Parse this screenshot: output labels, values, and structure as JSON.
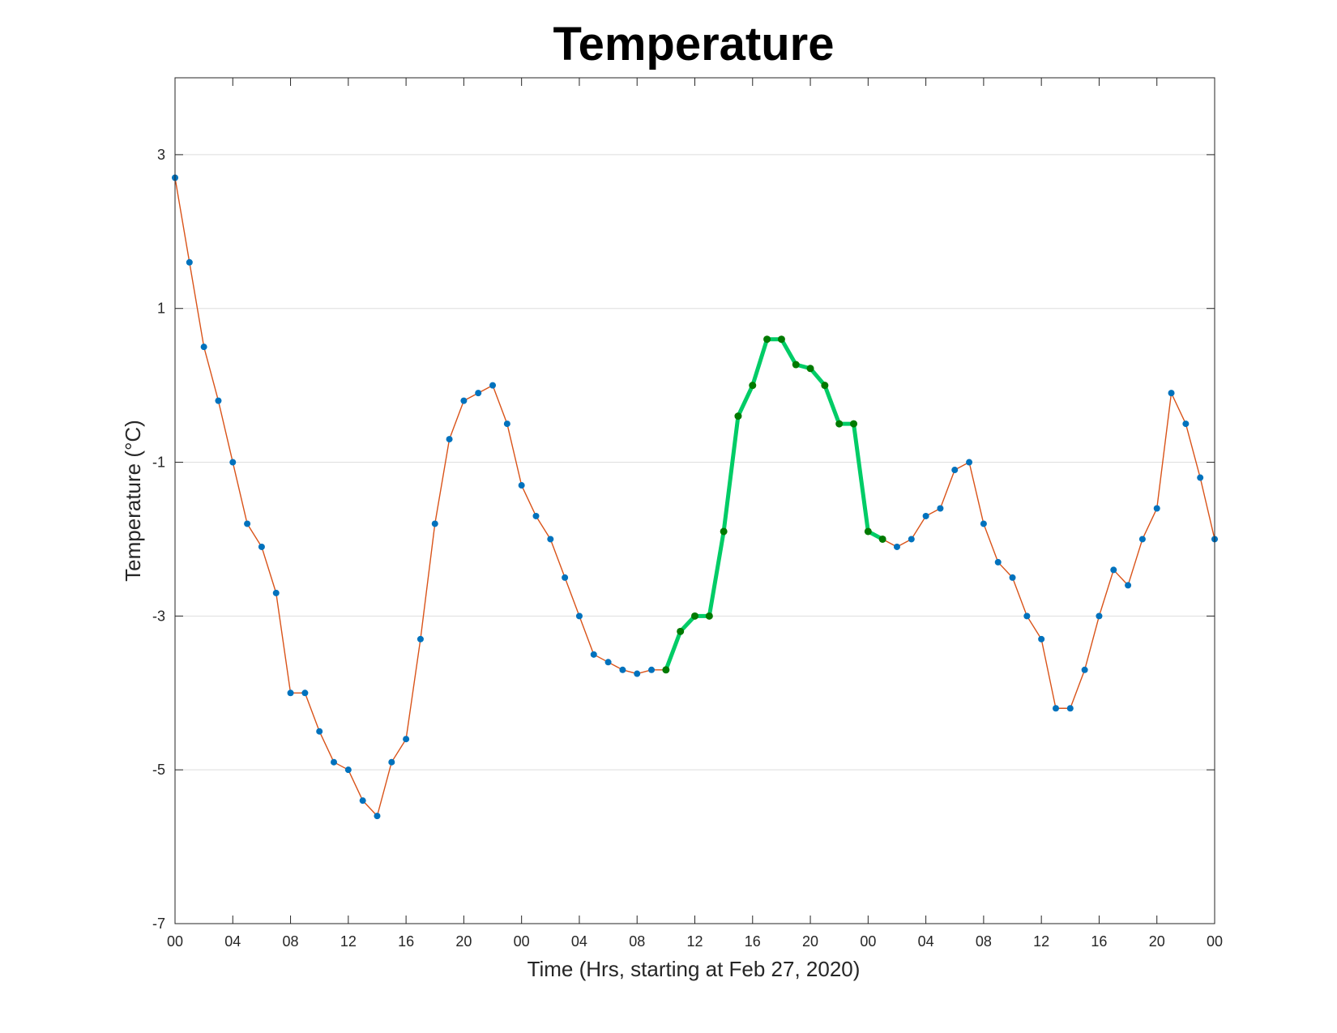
{
  "chart_data": {
    "type": "line",
    "title": "Temperature",
    "xlabel": "Time (Hrs, starting at Feb 27, 2020)",
    "ylabel": "Temperature (°C)",
    "ylim": [
      -7,
      4
    ],
    "xlim_hours": [
      0,
      72
    ],
    "y_ticks": [
      -7,
      -5,
      -3,
      -1,
      1,
      3
    ],
    "x_tick_hours": [
      0,
      4,
      8,
      12,
      16,
      20,
      24,
      28,
      32,
      36,
      40,
      44,
      48,
      52,
      56,
      60,
      64,
      68,
      72
    ],
    "x_tick_labels": [
      "00",
      "04",
      "08",
      "12",
      "16",
      "20",
      "00",
      "04",
      "08",
      "12",
      "16",
      "20",
      "00",
      "04",
      "08",
      "12",
      "16",
      "20",
      "00"
    ],
    "grid": "horizontal",
    "highlight_range_hours": [
      34,
      49
    ],
    "series": [
      {
        "x_hours": [
          0,
          1,
          2,
          3,
          4,
          5,
          6,
          7,
          8,
          9,
          10,
          11,
          12,
          13,
          14,
          15,
          16,
          17,
          18,
          19,
          20,
          21,
          22,
          23,
          24,
          25,
          26,
          27,
          28,
          29,
          30,
          31,
          32,
          33,
          34,
          35,
          36,
          37,
          38,
          39,
          40,
          41,
          42,
          43,
          44,
          45,
          46,
          47,
          48,
          49,
          50,
          51,
          52,
          53,
          54,
          55,
          56,
          57,
          58,
          59,
          60,
          61,
          62,
          63,
          64,
          65,
          66,
          67,
          68,
          69,
          70,
          71,
          72
        ],
        "values": [
          2.7,
          1.6,
          0.5,
          -0.2,
          -1.0,
          -1.8,
          -2.1,
          -2.7,
          -4.0,
          -4.0,
          -4.5,
          -4.9,
          -5.0,
          -5.4,
          -5.6,
          -4.9,
          -4.6,
          -3.3,
          -1.8,
          -0.7,
          -0.2,
          -0.1,
          0.0,
          -0.5,
          -1.3,
          -1.7,
          -2.0,
          -2.5,
          -3.0,
          -3.5,
          -3.6,
          -3.7,
          -3.75,
          -3.7,
          -3.7,
          -3.2,
          -3.0,
          -3.0,
          -1.9,
          -0.4,
          0.0,
          0.6,
          0.6,
          0.27,
          0.22,
          0.0,
          -0.5,
          -0.5,
          -1.9,
          -2.0,
          -2.1,
          -2.0,
          -1.7,
          -1.6,
          -1.1,
          -1.0,
          -1.8,
          -2.3,
          -2.5,
          -3.0,
          -3.3,
          -4.2,
          -4.2,
          -3.7,
          -3.0,
          -2.4,
          -2.6,
          -2.0,
          -1.6,
          -0.1,
          -0.5,
          -1.2,
          -2.0
        ],
        "line_color": "#d95319",
        "marker_color": "#0072bd",
        "highlight_line_color": "#00cc66",
        "highlight_marker_color": "#007a00"
      }
    ]
  }
}
